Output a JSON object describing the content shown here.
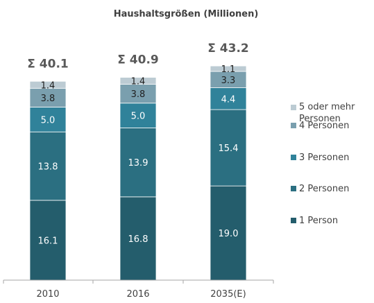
{
  "chart_data": {
    "type": "bar",
    "stacked": true,
    "title": "Haushaltsgrößen (Millionen)",
    "categories": [
      "2010",
      "2016",
      "2035(E)"
    ],
    "totals": [
      "Σ 40.1",
      "Σ 40.9",
      "Σ 43.2"
    ],
    "series": [
      {
        "name": "1 Person",
        "values": [
          16.1,
          16.8,
          19.0
        ],
        "labels": [
          "16.1",
          "16.8",
          "19.0"
        ],
        "color": "#245d6c",
        "label_color": "#ffffff"
      },
      {
        "name": "2 Personen",
        "values": [
          13.8,
          13.9,
          15.4
        ],
        "labels": [
          "13.8",
          "13.9",
          "15.4"
        ],
        "color": "#2b6f81",
        "label_color": "#ffffff"
      },
      {
        "name": "3 Personen",
        "values": [
          5.0,
          5.0,
          4.4
        ],
        "labels": [
          "5.0",
          "5.0",
          "4.4"
        ],
        "color": "#30829a",
        "label_color": "#ffffff"
      },
      {
        "name": "4 Personen",
        "values": [
          3.8,
          3.8,
          3.3
        ],
        "labels": [
          "3.8",
          "3.8",
          "3.3"
        ],
        "color": "#7a9fae",
        "label_color": "#1f1f1f"
      },
      {
        "name": "5 oder mehr Personen",
        "values": [
          1.4,
          1.4,
          1.1
        ],
        "labels": [
          "1.4",
          "1.4",
          "1.1"
        ],
        "color": "#bccbd3",
        "label_color": "#1f1f1f"
      }
    ],
    "legend_position": "right",
    "grid": false
  }
}
